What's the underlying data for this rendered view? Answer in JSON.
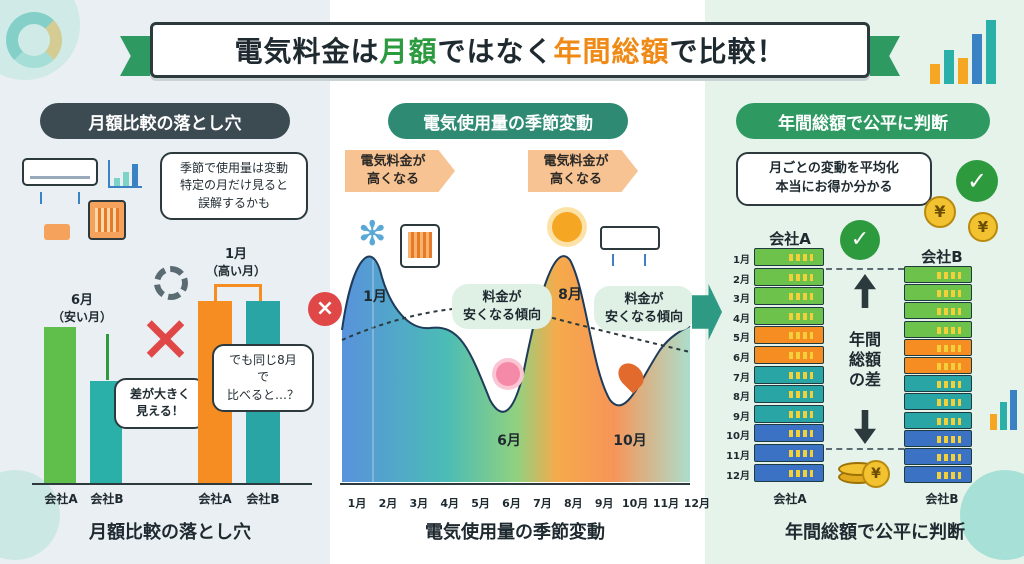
{
  "title": {
    "part1": "電気料金は",
    "part2": "月額",
    "part3": "ではなく",
    "part4": "年間総額",
    "part5": "で比較！"
  },
  "panel1": {
    "header": "月額比較の落とし穴",
    "bubble_line1": "季節で使用量は変動",
    "bubble_line2": "特定の月だけ見ると",
    "bubble_line3": "誤解するかも",
    "june_label": "6月",
    "june_sub": "（安い月）",
    "jan_label": "1月",
    "jan_sub": "（高い月）",
    "diff_line1": "差が大きく",
    "diff_line2": "見える！",
    "aug_line1": "でも同じ8月で",
    "aug_line2": "比べると…？",
    "company_a": "会社A",
    "company_b": "会社B",
    "company_a2": "会社A",
    "company_b2": "会社B",
    "caption": "月額比較の落とし穴",
    "bar_colors": {
      "a": "#5fbf4a",
      "b": "#2bb0a9",
      "orange": "#f58d22",
      "teal": "#2aa5a6"
    }
  },
  "panel2": {
    "header": "電気使用量の季節変動",
    "tag1_line1": "電気料金が",
    "tag1_line2": "高くなる",
    "tag2_line1": "電気料金が",
    "tag2_line2": "高くなる",
    "green1_line1": "料金が",
    "green1_line2": "安くなる傾向",
    "green2_line1": "料金が",
    "green2_line2": "安くなる傾向",
    "peak_jan": "1月",
    "peak_aug": "8月",
    "low_jun": "6月",
    "low_oct": "10月",
    "months": [
      "1月",
      "2月",
      "3月",
      "4月",
      "5月",
      "6月",
      "7月",
      "8月",
      "9月",
      "10月",
      "11月",
      "12月"
    ],
    "caption": "電気使用量の季節変動"
  },
  "panel3": {
    "header": "年間総額で公平に判断",
    "bubble_line1": "月ごとの変動を平均化",
    "bubble_line2": "本当にお得か分かる",
    "company_a_top": "会社A",
    "company_b_top": "会社B",
    "company_a_bottom": "会社A",
    "company_b_bottom": "会社B",
    "months": [
      "1月",
      "2月",
      "3月",
      "4月",
      "5月",
      "6月",
      "7月",
      "8月",
      "9月",
      "10月",
      "11月",
      "12月"
    ],
    "diff_label": "年間\n総額\nの差",
    "diff_line1": "年間",
    "diff_line2": "総額",
    "diff_line3": "の差",
    "yen_symbol": "¥",
    "caption": "年間総額で公平に判断"
  }
}
